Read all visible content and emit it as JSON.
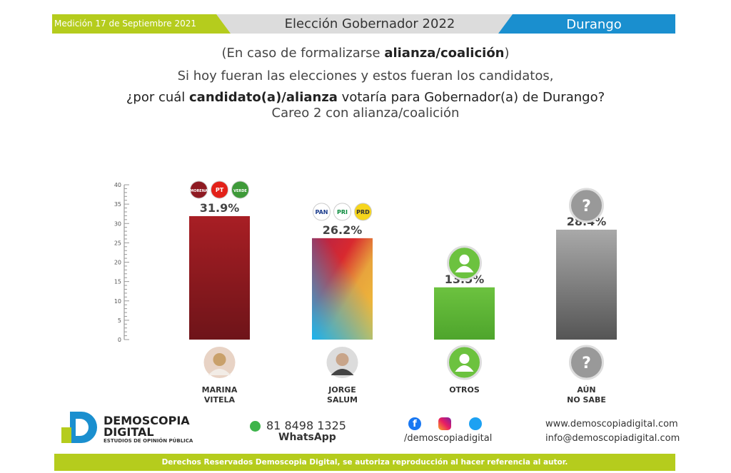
{
  "header": {
    "date": "Medición 17 de Septiembre 2021",
    "title": "Elección Gobernador 2022",
    "state": "Durango"
  },
  "question": {
    "line1_pre": "(En caso de formalizarse ",
    "line1_bold": "alianza/coalición",
    "line1_post": ")",
    "line2": "Si hoy fueran las elecciones y estos fueran los candidatos,",
    "line3_pre": "¿por cuál ",
    "line3_bold": "candidato(a)/alianza",
    "line3_post": " votaría para Gobernador(a) de Durango?",
    "line4": "Careo 2 con alianza/coalición"
  },
  "chart_data": {
    "type": "bar",
    "categories": [
      "MARINA VITELA",
      "JORGE SALUM",
      "OTROS",
      "AÚN NO SABE"
    ],
    "values": [
      31.9,
      26.2,
      13.5,
      28.4
    ],
    "data_labels": [
      "31.9%",
      "26.2%",
      "13.5%",
      "28.4%"
    ],
    "ylim": [
      0,
      40
    ],
    "yticks": [
      0,
      5,
      10,
      15,
      20,
      25,
      30,
      35,
      40
    ],
    "colors": [
      "#8e1a22",
      "gradient",
      "#5fb535",
      "#777777"
    ],
    "party_logos": [
      [
        "MORENA",
        "PT",
        "VERDE"
      ],
      [
        "PAN",
        "PRI",
        "PRD"
      ],
      [],
      []
    ]
  },
  "candidates": [
    {
      "line1": "MARINA",
      "line2": "VITELA"
    },
    {
      "line1": "JORGE",
      "line2": "SALUM"
    },
    {
      "line1": "OTROS",
      "line2": ""
    },
    {
      "line1": "AÚN",
      "line2": "NO SABE"
    }
  ],
  "footer": {
    "brand1": "DEMOSCOPIA",
    "brand2": "DIGITAL",
    "brand3": "ESTUDIOS DE OPINIÓN PÚBLICA",
    "phone": "81 8498 1325",
    "whatsapp": "WhatsApp",
    "social": "/demoscopiadigital",
    "web": "www.demoscopiadigital.com",
    "email": "info@demoscopiadigital.com",
    "rights": "Derechos Reservados Demoscopia Digital, se autoriza reproducción al hacer referencia al autor."
  }
}
